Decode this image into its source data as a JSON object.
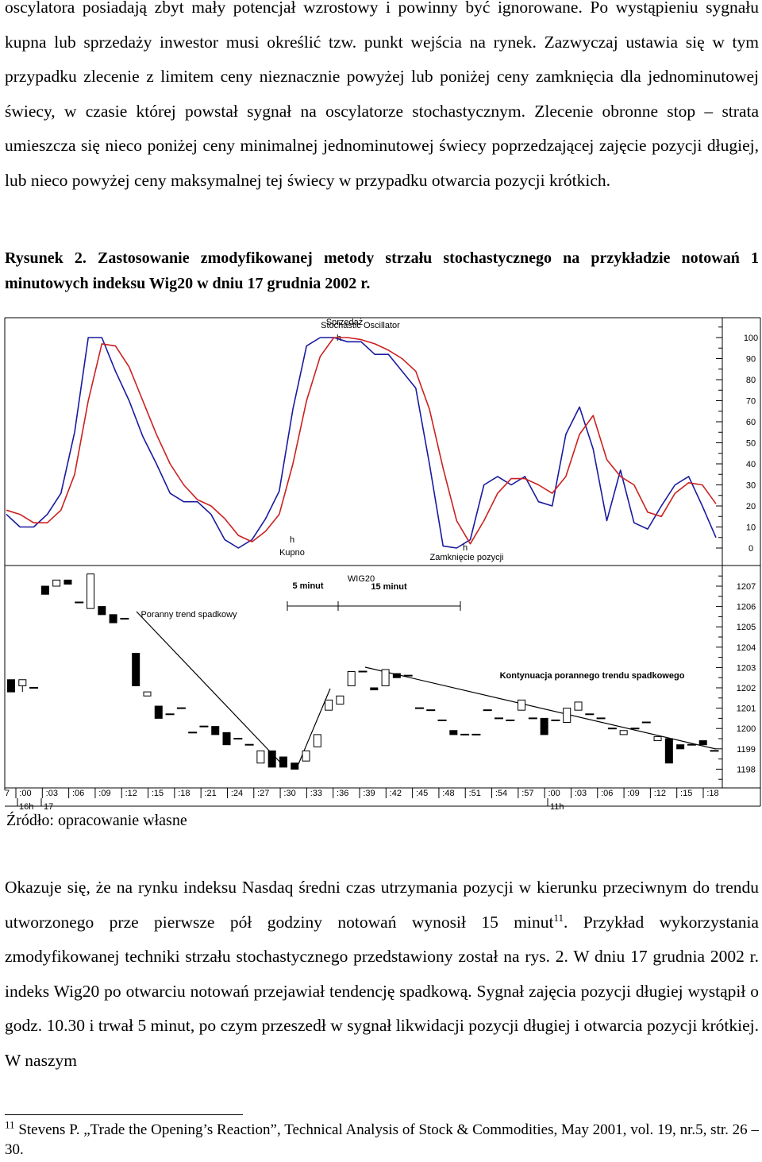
{
  "paragraph_top": "oscylatora posiadają zbyt mały potencjał wzrostowy i powinny być ignorowane. Po wystąpieniu sygnału kupna lub sprzedaży inwestor musi określić tzw. punkt wejścia na rynek. Zazwyczaj ustawia się w tym przypadku zlecenie z limitem ceny nieznacznie powyżej lub poniżej ceny zamknięcia dla jednominutowej świecy, w czasie której powstał sygnał na oscylatorze stochastycznym. Zlecenie obronne stop – strata umieszcza się nieco poniżej ceny minimalnej jednominutowej świecy poprzedzającej zajęcie pozycji długiej, lub nieco powyżej ceny maksymalnej tej świecy w przypadku otwarcia pozycji krótkich.",
  "caption": "Rysunek 2. Zastosowanie zmodyfikowanej metody strzału stochastycznego na przykładzie notowań 1 minutowych indeksu Wig20 w dniu 17 grudnia 2002 r.",
  "source": "Źródło: opracowanie własne",
  "paragraph_bottom": "Okazuje się, że na rynku indeksu Nasdaq średni czas utrzymania pozycji w kierunku przeciwnym do trendu utworzonego prze pierwsze pół godziny notowań wynosił 15 minut",
  "paragraph_bottom_ref": "11",
  "paragraph_bottom_tail": ". Przykład wykorzystania zmodyfikowanej techniki strzału stochastycznego przedstawiony został na rys. 2. W dniu 17 grudnia 2002 r. indeks Wig20 po otwarciu notowań przejawiał tendencję spadkową. Sygnał zajęcia pozycji długiej wystąpił o godz. 10.30 i trwał 5 minut, po czym przeszedł w sygnał likwidacji pozycji długiej i otwarcia pozycji krótkiej. W naszym",
  "footnote_number": "11",
  "footnote_text": " Stevens P. „Trade the Opening’s Reaction”, Technical Analysis of Stock & Commodities, May 2001, vol. 19, nr.5, str. 26 – 30.",
  "chart_data": [
    {
      "type": "line",
      "title": "Stochastic Oscillator",
      "ylim": [
        0,
        100
      ],
      "y_ticks": [
        "100",
        "90",
        "80",
        "70",
        "60",
        "50",
        "40",
        "30",
        "20",
        "10",
        "0"
      ],
      "annotations": {
        "sell": "Sprzedaż",
        "buy": "Kupno",
        "close": "Zamknięcie pozycji",
        "marker": "h"
      },
      "colors": {
        "k": "#1a1aa0",
        "d": "#cc2020"
      },
      "series": [
        {
          "values": [
            16,
            10,
            10,
            16,
            26,
            55,
            100,
            100,
            84,
            70,
            53,
            40,
            26,
            22,
            22,
            16,
            4,
            0,
            4,
            14,
            27,
            66,
            96,
            100,
            100,
            98,
            98,
            92,
            92,
            84,
            76,
            40,
            1,
            0,
            4,
            30,
            34,
            30,
            34,
            22,
            20,
            54,
            67,
            47,
            13,
            37,
            12,
            9,
            20,
            30,
            34,
            20,
            5
          ]
        },
        {
          "values": [
            18,
            16,
            12,
            12,
            18,
            35,
            70,
            97,
            96,
            86,
            70,
            54,
            40,
            30,
            23,
            20,
            14,
            6,
            3,
            8,
            16,
            40,
            70,
            91,
            100,
            100,
            99,
            97,
            94,
            90,
            84,
            66,
            38,
            13,
            2,
            13,
            26,
            33,
            33,
            30,
            26,
            34,
            54,
            63,
            42,
            34,
            30,
            17,
            15,
            26,
            31,
            30,
            21
          ]
        }
      ]
    },
    {
      "type": "candlestick",
      "title": "WIG20",
      "ylim": [
        1197.5,
        1207.5
      ],
      "y_ticks": [
        "1207",
        "1206",
        "1205",
        "1204",
        "1203",
        "1202",
        "1201",
        "1200",
        "1199",
        "1198"
      ],
      "annotations": {
        "trend_down": "Poranny trend spadkowy",
        "continuation": "Kontynuacja porannego trendu spadkowego",
        "five_min": "5 minut",
        "fifteen_min": "15 minut"
      },
      "x_tick_labels": [
        ":00",
        ":03",
        ":06",
        ":09",
        ":12",
        ":15",
        ":18",
        ":21",
        ":24",
        ":27",
        ":30",
        ":33",
        ":36",
        ":39",
        ":42",
        ":45",
        ":48",
        ":51",
        ":54",
        ":57",
        ":00",
        ":03",
        ":06",
        ":09",
        ":12",
        ":15",
        ":18"
      ],
      "x_left_fragment": "7",
      "day_labels": {
        "a": "16h",
        "b": "17",
        "c": "11h"
      },
      "candles": [
        [
          1202.4,
          1202.4,
          1201.8,
          1201.8
        ],
        [
          1202.1,
          1202.4,
          1201.8,
          1202.4
        ],
        [
          1202.0,
          1202.0,
          1202.0,
          1202.0
        ],
        [
          1207.0,
          1207.0,
          1206.6,
          1206.6
        ],
        [
          1207.0,
          1207.3,
          1207.0,
          1207.3
        ],
        [
          1207.3,
          1207.3,
          1207.1,
          1207.1
        ],
        [
          1206.2,
          1206.2,
          1206.2,
          1206.2
        ],
        [
          1205.9,
          1207.6,
          1205.9,
          1207.6
        ],
        [
          1206.0,
          1206.0,
          1205.6,
          1205.6
        ],
        [
          1205.6,
          1205.6,
          1205.2,
          1205.2
        ],
        [
          1205.4,
          1205.4,
          1205.4,
          1205.4
        ],
        [
          1203.7,
          1203.7,
          1202.1,
          1202.1
        ],
        [
          1201.6,
          1201.8,
          1201.6,
          1201.8
        ],
        [
          1201.1,
          1201.1,
          1200.5,
          1200.5
        ],
        [
          1200.7,
          1200.7,
          1200.7,
          1200.7
        ],
        [
          1201.0,
          1201.0,
          1201.0,
          1201.0
        ],
        [
          1199.8,
          1199.8,
          1199.8,
          1199.8
        ],
        [
          1200.1,
          1200.1,
          1200.1,
          1200.1
        ],
        [
          1200.1,
          1200.1,
          1199.7,
          1199.7
        ],
        [
          1199.8,
          1199.8,
          1199.2,
          1199.2
        ],
        [
          1199.5,
          1199.5,
          1199.5,
          1199.5
        ],
        [
          1199.2,
          1199.2,
          1199.2,
          1199.2
        ],
        [
          1198.3,
          1198.9,
          1198.3,
          1198.9
        ],
        [
          1198.9,
          1198.9,
          1198.1,
          1198.1
        ],
        [
          1198.6,
          1198.6,
          1198.1,
          1198.1
        ],
        [
          1198.3,
          1198.3,
          1198.0,
          1198.0
        ],
        [
          1198.4,
          1198.9,
          1198.4,
          1198.9
        ],
        [
          1199.1,
          1199.7,
          1199.1,
          1199.7
        ],
        [
          1200.9,
          1201.4,
          1200.9,
          1201.4
        ],
        [
          1201.2,
          1201.6,
          1201.2,
          1201.6
        ],
        [
          1202.1,
          1202.8,
          1202.1,
          1202.8
        ],
        [
          1202.8,
          1202.8,
          1202.8,
          1202.8
        ],
        [
          1202.0,
          1202.0,
          1201.9,
          1201.9
        ],
        [
          1202.1,
          1202.9,
          1202.1,
          1202.9
        ],
        [
          1202.7,
          1202.7,
          1202.5,
          1202.5
        ],
        [
          1202.6,
          1202.6,
          1202.6,
          1202.6
        ],
        [
          1201.0,
          1201.0,
          1201.0,
          1201.0
        ],
        [
          1200.9,
          1200.9,
          1200.9,
          1200.9
        ],
        [
          1200.4,
          1200.4,
          1200.4,
          1200.4
        ],
        [
          1199.9,
          1199.9,
          1199.7,
          1199.7
        ],
        [
          1199.7,
          1199.7,
          1199.7,
          1199.7
        ],
        [
          1199.7,
          1199.7,
          1199.7,
          1199.7
        ],
        [
          1200.9,
          1200.9,
          1200.9,
          1200.9
        ],
        [
          1200.5,
          1200.5,
          1200.5,
          1200.5
        ],
        [
          1200.4,
          1200.4,
          1200.4,
          1200.4
        ],
        [
          1200.9,
          1201.4,
          1200.9,
          1201.4
        ],
        [
          1200.5,
          1200.5,
          1200.5,
          1200.5
        ],
        [
          1200.5,
          1200.5,
          1199.7,
          1199.7
        ],
        [
          1200.4,
          1200.4,
          1200.4,
          1200.4
        ],
        [
          1200.3,
          1201.0,
          1200.3,
          1201.0
        ],
        [
          1200.9,
          1201.3,
          1200.9,
          1201.3
        ],
        [
          1200.7,
          1200.7,
          1200.7,
          1200.7
        ],
        [
          1200.5,
          1200.5,
          1200.5,
          1200.5
        ],
        [
          1200.0,
          1200.0,
          1200.0,
          1200.0
        ],
        [
          1199.7,
          1199.9,
          1199.7,
          1199.9
        ],
        [
          1200.0,
          1200.0,
          1200.0,
          1200.0
        ],
        [
          1200.3,
          1200.3,
          1200.3,
          1200.3
        ],
        [
          1199.4,
          1199.6,
          1199.4,
          1199.6
        ],
        [
          1199.5,
          1199.5,
          1198.3,
          1198.3
        ],
        [
          1199.2,
          1199.2,
          1199.0,
          1199.0
        ],
        [
          1199.2,
          1199.2,
          1199.2,
          1199.2
        ],
        [
          1199.4,
          1199.4,
          1199.2,
          1199.2
        ],
        [
          1198.9,
          1198.9,
          1198.9,
          1198.9
        ]
      ]
    }
  ]
}
